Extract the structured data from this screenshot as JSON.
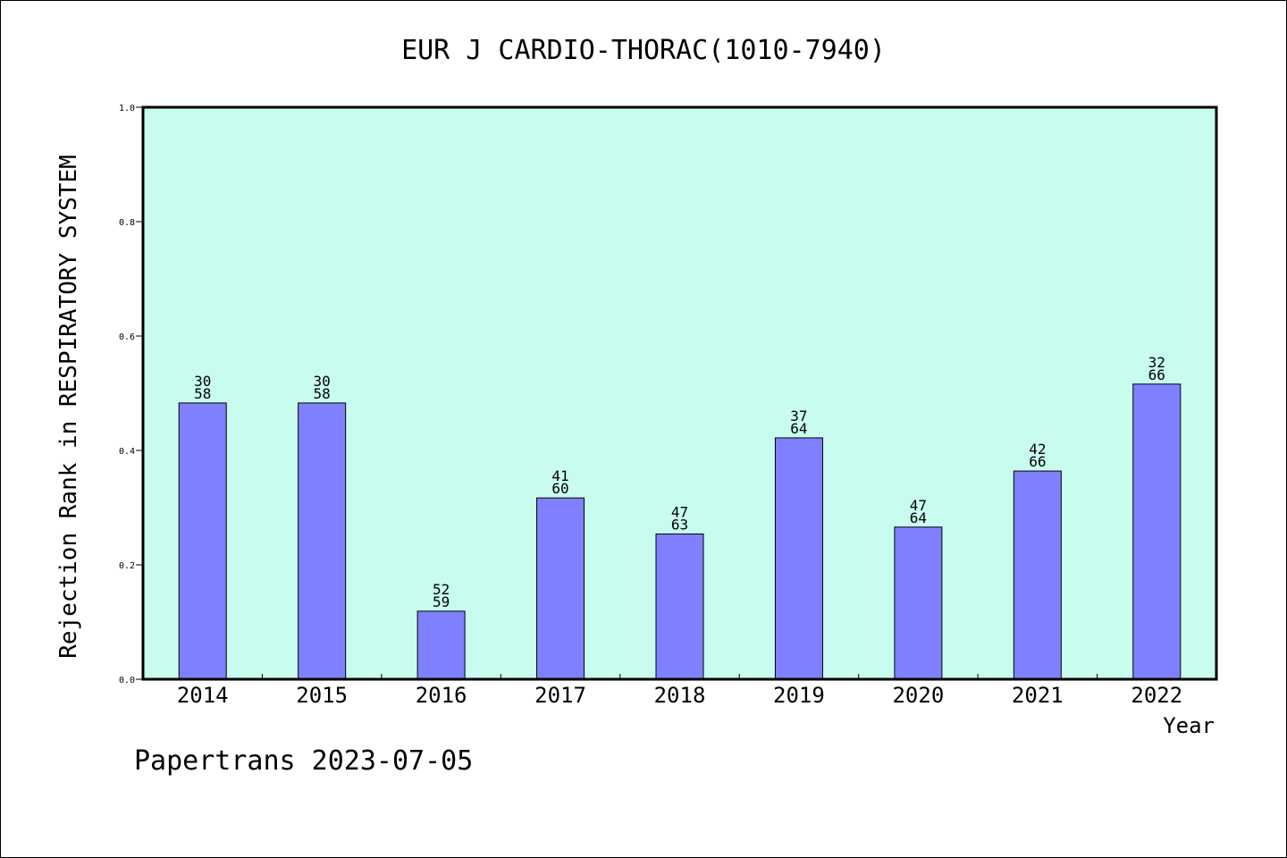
{
  "chart_data": {
    "type": "bar",
    "title": "EUR J CARDIO-THORAC(1010-7940)",
    "xlabel": "Year",
    "ylabel": "Rejection Rank in RESPIRATORY SYSTEM",
    "ylim": [
      0,
      1.0
    ],
    "yticks": [
      "0.0",
      "0.2",
      "0.4",
      "0.6",
      "0.8",
      "1.0"
    ],
    "categories": [
      "2014",
      "2015",
      "2016",
      "2017",
      "2018",
      "2019",
      "2020",
      "2021",
      "2022"
    ],
    "values": [
      0.483,
      0.483,
      0.119,
      0.317,
      0.254,
      0.422,
      0.266,
      0.364,
      0.516
    ],
    "labels": [
      [
        "30",
        "58"
      ],
      [
        "30",
        "58"
      ],
      [
        "52",
        "59"
      ],
      [
        "41",
        "60"
      ],
      [
        "47",
        "63"
      ],
      [
        "37",
        "64"
      ],
      [
        "47",
        "64"
      ],
      [
        "42",
        "66"
      ],
      [
        "32",
        "66"
      ]
    ],
    "grid": false,
    "colors": {
      "plot_background": "#c8fcee",
      "bar": "#8080ff",
      "axis": "#000000"
    }
  },
  "footer": "Papertrans 2023-07-05"
}
